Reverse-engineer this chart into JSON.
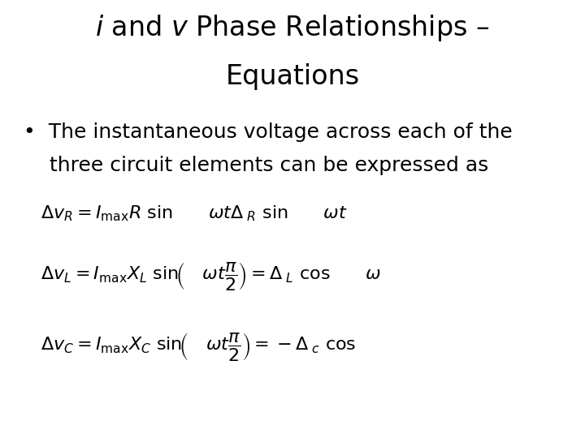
{
  "title_line1": "$i$ and $v$ Phase Relationships –",
  "title_line2": "Equations",
  "bullet_line1": "•  The instantaneous voltage across each of the",
  "bullet_line2": "    three circuit elements can be expressed as",
  "eq1": "$\\Delta v_R = I_{\\mathrm{max}} R\\ \\mathrm{sin}\\qquad \\omega t\\Delta_{\\ R}\\ \\mathrm{sin}\\qquad \\omega t$",
  "eq2": "$\\Delta v_L = I_{\\mathrm{max}} X_L\\ \\mathrm{sin}\\!\\left(\\quad \\omega t\\dfrac{\\pi}{2}\\right) = \\Delta_{\\ L}\\ \\mathrm{cos}\\qquad \\omega$",
  "eq3": "$\\Delta v_C = I_{\\mathrm{max}} X_C\\ \\mathrm{sin}\\!\\left(\\quad \\omega t\\dfrac{\\pi}{2}\\right) = -\\Delta_{\\ c}\\ \\mathrm{cos}$",
  "bg_color": "#ffffff",
  "text_color": "#000000",
  "title_fontsize": 24,
  "bullet_fontsize": 18,
  "eq_fontsize": 16,
  "fig_width": 7.2,
  "fig_height": 5.4
}
